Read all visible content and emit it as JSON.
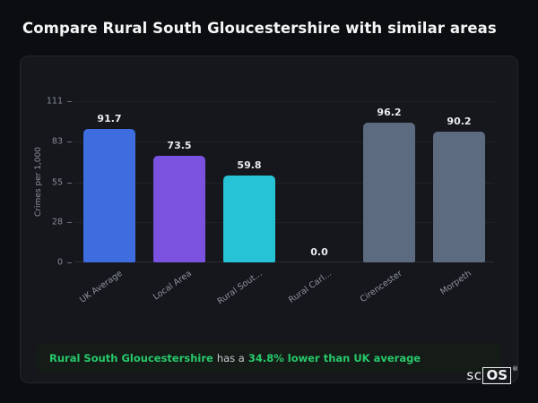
{
  "page": {
    "title": "Compare Rural South Gloucestershire with similar areas"
  },
  "chart_data": {
    "type": "bar",
    "categories": [
      "UK Average",
      "Local Area",
      "Rural Sout...",
      "Rural Carl...",
      "Cirencester",
      "Morpeth"
    ],
    "values": [
      91.7,
      73.5,
      59.8,
      0.0,
      96.2,
      90.2
    ],
    "value_labels": [
      "91.7",
      "73.5",
      "59.8",
      "0.0",
      "96.2",
      "90.2"
    ],
    "bar_colors": [
      "#3e6de0",
      "#7b52e0",
      "#26c2d6",
      "#5d6b80",
      "#5d6b80",
      "#5d6b80"
    ],
    "title": "",
    "xlabel": "",
    "ylabel": "Crimes per 1,000",
    "yticks": [
      0,
      28,
      55,
      83,
      111
    ],
    "ylim": [
      0,
      111
    ],
    "grid": true,
    "legend": false
  },
  "summary": {
    "area_name": "Rural South Gloucestershire",
    "middle_text": "has a",
    "stat_text": "34.8% lower than UK average",
    "accent_color": "#27c96a"
  },
  "logo": {
    "prefix": "sc",
    "boxed": "OS",
    "registered": "®"
  }
}
